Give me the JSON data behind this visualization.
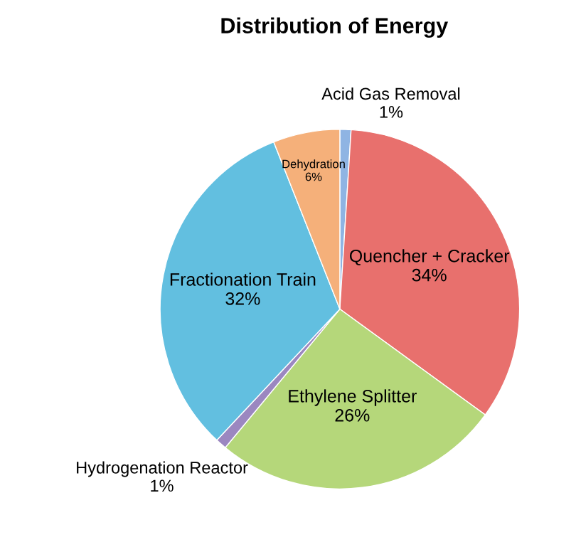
{
  "chart_data": {
    "type": "pie",
    "title": "Distribution of Energy",
    "categories": [
      "Acid Gas Removal",
      "Quencher + Cracker",
      "Ethylene Splitter",
      "Hydrogenation Reactor",
      "Fractionation Train",
      "Dehydration"
    ],
    "values": [
      1,
      34,
      26,
      1,
      32,
      6
    ],
    "colors": [
      "#8fb4e3",
      "#e8706d",
      "#b5d77a",
      "#9b87c0",
      "#62bfe0",
      "#f5b07a"
    ],
    "value_labels": [
      "1%",
      "34%",
      "26%",
      "1%",
      "32%",
      "6%"
    ]
  }
}
